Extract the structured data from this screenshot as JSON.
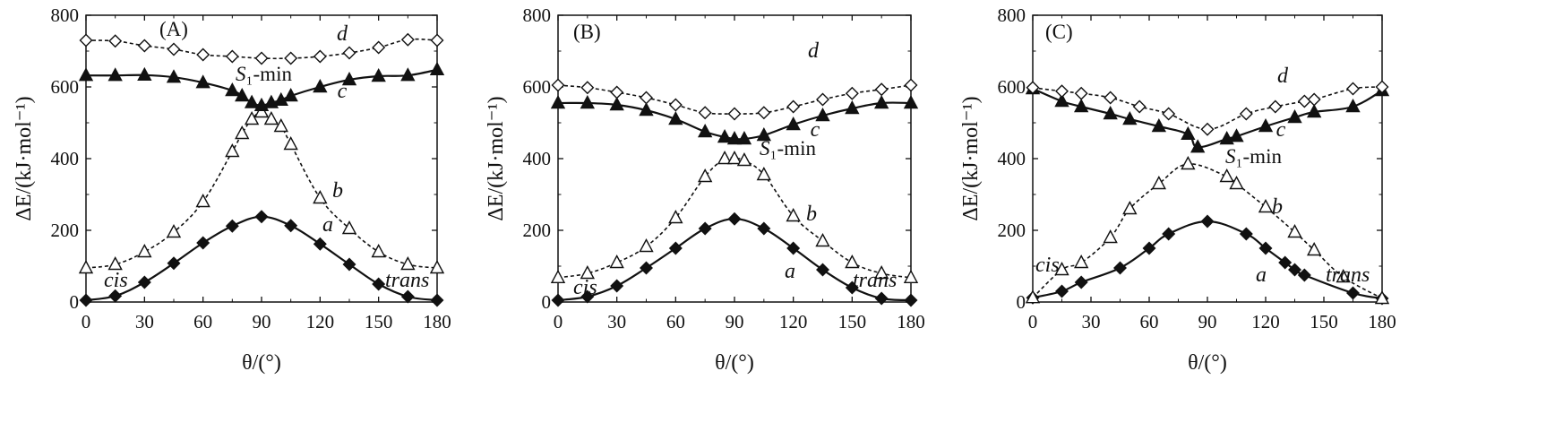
{
  "figure": {
    "x_axis_label": "θ/(°)",
    "y_axis_label": "ΔE/(kJ·mol⁻¹)",
    "line_color": "#111111"
  },
  "chart_data": [
    {
      "type": "line",
      "panel_label": "(A)",
      "xlim": [
        0,
        180
      ],
      "ylim": [
        0,
        800
      ],
      "xticks": [
        "0",
        "30",
        "60",
        "90",
        "120",
        "150",
        "180"
      ],
      "yticks": [
        "0",
        "200",
        "400",
        "600",
        "800"
      ],
      "xlabel": "θ/(°)",
      "ylabel": "ΔE/(kJ·mol⁻¹)",
      "grid": false,
      "series": [
        {
          "name": "a",
          "style": "solid",
          "marker": "filled-diamond",
          "x": [
            0,
            15,
            30,
            45,
            60,
            75,
            90,
            105,
            120,
            135,
            150,
            165,
            180
          ],
          "y": [
            5,
            17,
            55,
            108,
            165,
            212,
            238,
            213,
            162,
            105,
            50,
            15,
            5
          ]
        },
        {
          "name": "b",
          "style": "dashed",
          "marker": "open-triangle",
          "x": [
            0,
            15,
            30,
            45,
            60,
            75,
            80,
            85,
            90,
            95,
            100,
            105,
            120,
            135,
            150,
            165,
            180
          ],
          "y": [
            95,
            105,
            140,
            195,
            280,
            420,
            470,
            510,
            530,
            510,
            490,
            440,
            290,
            205,
            140,
            105,
            95
          ]
        },
        {
          "name": "c",
          "style": "solid",
          "marker": "filled-triangle",
          "x": [
            0,
            15,
            30,
            45,
            60,
            75,
            80,
            85,
            90,
            95,
            100,
            105,
            120,
            135,
            150,
            165,
            180
          ],
          "y": [
            632,
            632,
            633,
            627,
            612,
            590,
            575,
            556,
            548,
            556,
            563,
            575,
            600,
            620,
            630,
            632,
            648
          ]
        },
        {
          "name": "d",
          "style": "dashed",
          "marker": "open-diamond",
          "x": [
            0,
            15,
            30,
            45,
            60,
            75,
            90,
            105,
            120,
            135,
            150,
            165,
            180
          ],
          "y": [
            730,
            728,
            715,
            705,
            690,
            685,
            680,
            680,
            685,
            695,
            710,
            732,
            730
          ]
        }
      ],
      "annotations": {
        "s1min_label": "S₁-min",
        "cis_label": "cis",
        "trans_label": "trans"
      }
    },
    {
      "type": "line",
      "panel_label": "(B)",
      "xlim": [
        0,
        180
      ],
      "ylim": [
        0,
        800
      ],
      "xticks": [
        "0",
        "30",
        "60",
        "90",
        "120",
        "150",
        "180"
      ],
      "yticks": [
        "0",
        "200",
        "400",
        "600",
        "800"
      ],
      "xlabel": "θ/(°)",
      "ylabel": "ΔE/(kJ·mol⁻¹)",
      "grid": false,
      "series": [
        {
          "name": "a",
          "style": "solid",
          "marker": "filled-diamond",
          "x": [
            0,
            15,
            30,
            45,
            60,
            75,
            90,
            105,
            120,
            135,
            150,
            165,
            180
          ],
          "y": [
            5,
            15,
            45,
            95,
            150,
            205,
            232,
            205,
            150,
            90,
            40,
            10,
            5
          ]
        },
        {
          "name": "b",
          "style": "dashed",
          "marker": "open-triangle",
          "x": [
            0,
            15,
            30,
            45,
            60,
            75,
            85,
            90,
            95,
            105,
            120,
            135,
            150,
            165,
            180
          ],
          "y": [
            68,
            80,
            110,
            155,
            235,
            350,
            400,
            400,
            395,
            355,
            240,
            170,
            110,
            80,
            68
          ]
        },
        {
          "name": "c",
          "style": "solid",
          "marker": "filled-triangle",
          "x": [
            0,
            15,
            30,
            45,
            60,
            75,
            85,
            90,
            95,
            105,
            120,
            135,
            150,
            165,
            180
          ],
          "y": [
            555,
            555,
            550,
            535,
            510,
            475,
            460,
            455,
            455,
            465,
            495,
            520,
            540,
            555,
            555
          ]
        },
        {
          "name": "d",
          "style": "dashed",
          "marker": "open-diamond",
          "x": [
            0,
            15,
            30,
            45,
            60,
            75,
            90,
            105,
            120,
            135,
            150,
            165,
            180
          ],
          "y": [
            605,
            598,
            585,
            570,
            550,
            528,
            525,
            528,
            545,
            565,
            582,
            593,
            605
          ]
        }
      ],
      "annotations": {
        "s1min_label": "S₁-min",
        "cis_label": "cis",
        "trans_label": "trans"
      }
    },
    {
      "type": "line",
      "panel_label": "(C)",
      "xlim": [
        0,
        180
      ],
      "ylim": [
        0,
        800
      ],
      "xticks": [
        "0",
        "30",
        "60",
        "90",
        "120",
        "150",
        "180"
      ],
      "yticks": [
        "0",
        "200",
        "400",
        "600",
        "800"
      ],
      "xlabel": "θ/(°)",
      "ylabel": "ΔE/(kJ·mol⁻¹)",
      "grid": false,
      "series": [
        {
          "name": "a",
          "style": "solid",
          "marker": "filled-diamond",
          "x": [
            0,
            15,
            25,
            45,
            60,
            70,
            90,
            110,
            120,
            130,
            135,
            140,
            165,
            180
          ],
          "y": [
            12,
            30,
            55,
            95,
            150,
            190,
            225,
            190,
            150,
            110,
            90,
            75,
            25,
            10
          ]
        },
        {
          "name": "b",
          "style": "dashed",
          "marker": "open-triangle",
          "x": [
            0,
            15,
            25,
            40,
            50,
            65,
            80,
            100,
            105,
            120,
            135,
            145,
            160,
            180
          ],
          "y": [
            12,
            90,
            110,
            180,
            260,
            330,
            385,
            350,
            330,
            265,
            195,
            145,
            70,
            10
          ]
        },
        {
          "name": "c",
          "style": "solid",
          "marker": "filled-triangle",
          "x": [
            0,
            15,
            25,
            40,
            50,
            65,
            80,
            85,
            100,
            105,
            120,
            135,
            145,
            165,
            180
          ],
          "y": [
            595,
            560,
            545,
            525,
            510,
            490,
            468,
            432,
            455,
            462,
            490,
            515,
            530,
            545,
            590
          ]
        },
        {
          "name": "d",
          "style": "dashed",
          "marker": "open-diamond",
          "x": [
            0,
            15,
            25,
            40,
            55,
            70,
            90,
            110,
            125,
            140,
            145,
            165,
            180
          ],
          "y": [
            598,
            588,
            582,
            570,
            545,
            525,
            482,
            525,
            545,
            560,
            565,
            595,
            600
          ]
        }
      ],
      "annotations": {
        "s1min_label": "S₁-min",
        "cis_label": "cis",
        "trans_label": "trans"
      }
    }
  ]
}
